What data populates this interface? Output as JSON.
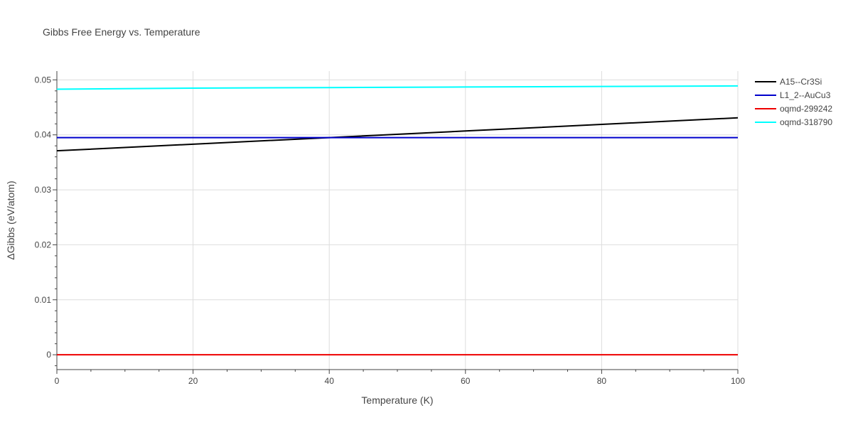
{
  "chart_data": {
    "type": "line",
    "title": "Gibbs Free Energy vs. Temperature",
    "xlabel": "Temperature (K)",
    "ylabel": "ΔGibbs (eV/atom)",
    "xlim": [
      0,
      100
    ],
    "ylim": [
      -0.0027,
      0.0516
    ],
    "x_ticks": [
      0,
      20,
      40,
      60,
      80,
      100
    ],
    "y_ticks": [
      0,
      0.01,
      0.02,
      0.03,
      0.04,
      0.05
    ],
    "grid": true,
    "legend_position": "top-right",
    "series": [
      {
        "name": "A15--Cr3Si",
        "color": "#000000",
        "x": [
          0,
          20,
          40,
          60,
          80,
          100
        ],
        "y": [
          0.0371,
          0.0383,
          0.0395,
          0.0407,
          0.0419,
          0.0431
        ]
      },
      {
        "name": "L1_2--AuCu3",
        "color": "#0000cc",
        "x": [
          0,
          20,
          40,
          60,
          80,
          100
        ],
        "y": [
          0.0395,
          0.0395,
          0.0395,
          0.0395,
          0.0395,
          0.0395
        ]
      },
      {
        "name": "oqmd-299242",
        "color": "#ee0000",
        "x": [
          0,
          20,
          40,
          60,
          80,
          100
        ],
        "y": [
          0,
          0,
          0,
          0,
          0,
          0
        ]
      },
      {
        "name": "oqmd-318790",
        "color": "#00ffff",
        "x": [
          0,
          20,
          40,
          60,
          80,
          100
        ],
        "y": [
          0.0483,
          0.0485,
          0.0486,
          0.0487,
          0.0488,
          0.0489
        ]
      }
    ]
  }
}
